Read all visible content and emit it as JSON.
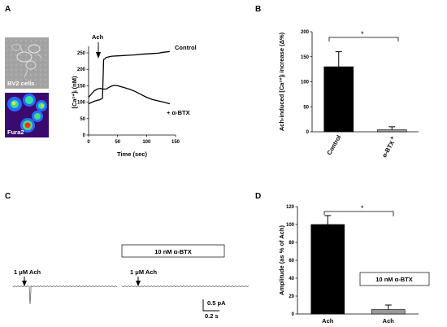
{
  "panels": {
    "A": {
      "letter": "A",
      "bv2_label": "BV2 cells",
      "fura2_label": "Fura2",
      "ach_label": "Ach",
      "control_label": "Control",
      "btx_label": "+ α-BTX"
    },
    "B": {
      "letter": "B",
      "star": "*"
    },
    "C": {
      "letter": "C",
      "btx_box": "10 nM α-BTX",
      "ach1": "1 μM Ach",
      "ach2": "1 μM Ach",
      "scale_pa": "0.5 pA",
      "scale_s": "0.2 s"
    },
    "D": {
      "letter": "D",
      "star": "*",
      "btx_box": "10 nM α-BTX"
    }
  },
  "chart_data": [
    {
      "id": "A-trace",
      "type": "line",
      "xlabel": "Time (sec)",
      "ylabel": "[Ca²⁺]ᵢ (nM)",
      "xlim": [
        0,
        150
      ],
      "ylim": [
        0,
        260
      ],
      "xticks": [
        0,
        50,
        100,
        150
      ],
      "yticks": [
        0,
        50,
        100,
        150,
        200,
        250
      ],
      "series": [
        {
          "name": "Control",
          "x": [
            0,
            10,
            20,
            24,
            26,
            28,
            30,
            35,
            40,
            50,
            60,
            70,
            80,
            90,
            100,
            110,
            120,
            130,
            140
          ],
          "y": [
            95,
            103,
            108,
            112,
            230,
            232,
            236,
            238,
            240,
            241,
            242,
            243,
            244,
            246,
            247,
            248,
            249,
            252,
            254
          ]
        },
        {
          "name": "+ α-BTX",
          "x": [
            0,
            5,
            10,
            15,
            20,
            25,
            30,
            35,
            40,
            45,
            50,
            60,
            70,
            80,
            90,
            100,
            110,
            120,
            130,
            140
          ],
          "y": [
            115,
            125,
            135,
            140,
            142,
            140,
            140,
            145,
            149,
            151,
            150,
            145,
            140,
            133,
            124,
            115,
            108,
            104,
            100,
            95
          ]
        }
      ]
    },
    {
      "id": "B-bar",
      "type": "bar",
      "ylabel": "Ach-induced [Ca²⁺]ᵢ increase (Δ%)",
      "categories": [
        "Control",
        "α-BTX"
      ],
      "category_prefix": [
        "",
        "+"
      ],
      "values": [
        130,
        4
      ],
      "errors": [
        30,
        6
      ],
      "colors": [
        "#000000",
        "#9a9a9a"
      ],
      "ylim": [
        0,
        200
      ],
      "yticks": [
        0,
        50,
        100,
        150,
        200
      ]
    },
    {
      "id": "D-bar",
      "type": "bar",
      "ylabel": "Amplitude (as % of Ach)",
      "categories": [
        "Ach",
        "Ach"
      ],
      "values": [
        100,
        5
      ],
      "errors": [
        10,
        5
      ],
      "colors": [
        "#000000",
        "#9a9a9a"
      ],
      "ylim": [
        0,
        120
      ],
      "yticks": [
        0,
        20,
        40,
        60,
        80,
        100,
        120
      ]
    }
  ]
}
